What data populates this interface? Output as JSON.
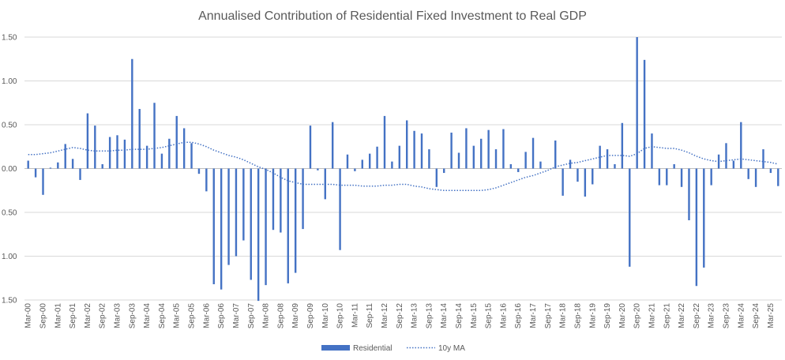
{
  "chart_data": {
    "type": "bar",
    "title": "Annualised Contribution of Residential Fixed Investment to Real GDP",
    "xlabel": "",
    "ylabel": "",
    "ylim": [
      -1.5,
      1.5
    ],
    "yticks": [
      1.5,
      1.0,
      0.5,
      0.0,
      -0.5,
      -1.0,
      -1.5
    ],
    "ytick_labels": [
      "1.50",
      "1.00",
      "0.50",
      "0.00",
      "0.50",
      "1.00",
      "1.50"
    ],
    "grid": true,
    "legend_position": "bottom",
    "categories": [
      "Mar-00",
      "Jun-00",
      "Sep-00",
      "Dec-00",
      "Mar-01",
      "Jun-01",
      "Sep-01",
      "Dec-01",
      "Mar-02",
      "Jun-02",
      "Sep-02",
      "Dec-02",
      "Mar-03",
      "Jun-03",
      "Sep-03",
      "Dec-03",
      "Mar-04",
      "Jun-04",
      "Sep-04",
      "Dec-04",
      "Mar-05",
      "Jun-05",
      "Sep-05",
      "Dec-05",
      "Mar-06",
      "Jun-06",
      "Sep-06",
      "Dec-06",
      "Mar-07",
      "Jun-07",
      "Sep-07",
      "Dec-07",
      "Mar-08",
      "Jun-08",
      "Sep-08",
      "Dec-08",
      "Mar-09",
      "Jun-09",
      "Sep-09",
      "Dec-09",
      "Mar-10",
      "Jun-10",
      "Sep-10",
      "Dec-10",
      "Mar-11",
      "Jun-11",
      "Sep-11",
      "Dec-11",
      "Mar-12",
      "Jun-12",
      "Sep-12",
      "Dec-12",
      "Mar-13",
      "Jun-13",
      "Sep-13",
      "Dec-13",
      "Mar-14",
      "Jun-14",
      "Sep-14",
      "Dec-14",
      "Mar-15",
      "Jun-15",
      "Sep-15",
      "Dec-15",
      "Mar-16",
      "Jun-16",
      "Sep-16",
      "Dec-16",
      "Mar-17",
      "Jun-17",
      "Sep-17",
      "Dec-17",
      "Mar-18",
      "Jun-18",
      "Sep-18",
      "Dec-18",
      "Mar-19",
      "Jun-19",
      "Sep-19",
      "Dec-19",
      "Mar-20",
      "Jun-20",
      "Sep-20",
      "Dec-20",
      "Mar-21",
      "Jun-21",
      "Sep-21",
      "Dec-21",
      "Mar-22",
      "Jun-22",
      "Sep-22",
      "Dec-22",
      "Mar-23",
      "Jun-23",
      "Sep-23",
      "Dec-23",
      "Mar-24",
      "Jun-24",
      "Sep-24",
      "Dec-24",
      "Mar-25",
      "Jun-25"
    ],
    "x_tick_labels": [
      "Mar-00",
      "Sep-00",
      "Mar-01",
      "Sep-01",
      "Mar-02",
      "Sep-02",
      "Mar-03",
      "Sep-03",
      "Mar-04",
      "Sep-04",
      "Mar-05",
      "Sep-05",
      "Mar-06",
      "Sep-06",
      "Mar-07",
      "Sep-07",
      "Mar-08",
      "Sep-08",
      "Mar-09",
      "Sep-09",
      "Mar-10",
      "Sep-10",
      "Mar-11",
      "Sep-11",
      "Mar-12",
      "Sep-12",
      "Mar-13",
      "Sep-13",
      "Mar-14",
      "Sep-14",
      "Mar-15",
      "Sep-15",
      "Mar-16",
      "Sep-16",
      "Mar-17",
      "Sep-17",
      "Mar-18",
      "Sep-18",
      "Mar-19",
      "Sep-19",
      "Mar-20",
      "Sep-20",
      "Mar-21",
      "Sep-21",
      "Mar-22",
      "Sep-22",
      "Mar-23",
      "Sep-23",
      "Mar-24",
      "Sep-24",
      "Mar-25"
    ],
    "series": [
      {
        "name": "Residential",
        "kind": "bar",
        "color": "#4472C4",
        "values": [
          0.09,
          -0.1,
          -0.3,
          0.01,
          0.07,
          0.28,
          0.11,
          -0.13,
          0.63,
          0.49,
          0.05,
          0.36,
          0.38,
          0.33,
          1.25,
          0.68,
          0.26,
          0.75,
          0.17,
          0.34,
          0.6,
          0.46,
          0.29,
          -0.06,
          -0.26,
          -1.32,
          -1.38,
          -1.1,
          -1.0,
          -0.82,
          -1.27,
          -1.51,
          -1.33,
          -0.7,
          -0.73,
          -1.31,
          -1.19,
          -0.69,
          0.49,
          -0.02,
          -0.35,
          0.53,
          -0.93,
          0.16,
          -0.03,
          0.1,
          0.17,
          0.25,
          0.6,
          0.08,
          0.26,
          0.55,
          0.43,
          0.4,
          0.22,
          -0.21,
          -0.05,
          0.41,
          0.18,
          0.46,
          0.26,
          0.34,
          0.44,
          0.22,
          0.45,
          0.05,
          -0.04,
          0.19,
          0.35,
          0.08,
          0.0,
          0.32,
          -0.31,
          0.1,
          -0.15,
          -0.32,
          -0.18,
          0.26,
          0.22,
          0.05,
          0.52,
          -1.12,
          1.5,
          1.24,
          0.4,
          -0.19,
          -0.19,
          0.05,
          -0.21,
          -0.59,
          -1.34,
          -1.13,
          -0.19,
          0.16,
          0.29,
          0.09,
          0.53,
          -0.12,
          -0.21,
          0.22,
          -0.05,
          -0.2
        ]
      },
      {
        "name": "10y MA",
        "kind": "line",
        "style": "dotted",
        "color": "#4472C4",
        "values": [
          0.16,
          0.16,
          0.17,
          0.18,
          0.2,
          0.22,
          0.24,
          0.23,
          0.21,
          0.2,
          0.2,
          0.2,
          0.21,
          0.21,
          0.22,
          0.22,
          0.22,
          0.23,
          0.24,
          0.26,
          0.28,
          0.3,
          0.3,
          0.28,
          0.25,
          0.21,
          0.18,
          0.15,
          0.13,
          0.1,
          0.06,
          0.02,
          -0.01,
          -0.05,
          -0.1,
          -0.14,
          -0.16,
          -0.18,
          -0.18,
          -0.18,
          -0.18,
          -0.18,
          -0.19,
          -0.19,
          -0.19,
          -0.2,
          -0.2,
          -0.2,
          -0.19,
          -0.19,
          -0.18,
          -0.18,
          -0.2,
          -0.21,
          -0.23,
          -0.24,
          -0.25,
          -0.25,
          -0.25,
          -0.25,
          -0.25,
          -0.25,
          -0.24,
          -0.22,
          -0.19,
          -0.16,
          -0.13,
          -0.1,
          -0.08,
          -0.05,
          -0.02,
          0.02,
          0.04,
          0.06,
          0.07,
          0.09,
          0.11,
          0.13,
          0.15,
          0.15,
          0.15,
          0.14,
          0.17,
          0.23,
          0.25,
          0.24,
          0.23,
          0.23,
          0.21,
          0.18,
          0.14,
          0.11,
          0.09,
          0.08,
          0.09,
          0.1,
          0.11,
          0.1,
          0.09,
          0.08,
          0.07,
          0.05
        ]
      }
    ]
  }
}
